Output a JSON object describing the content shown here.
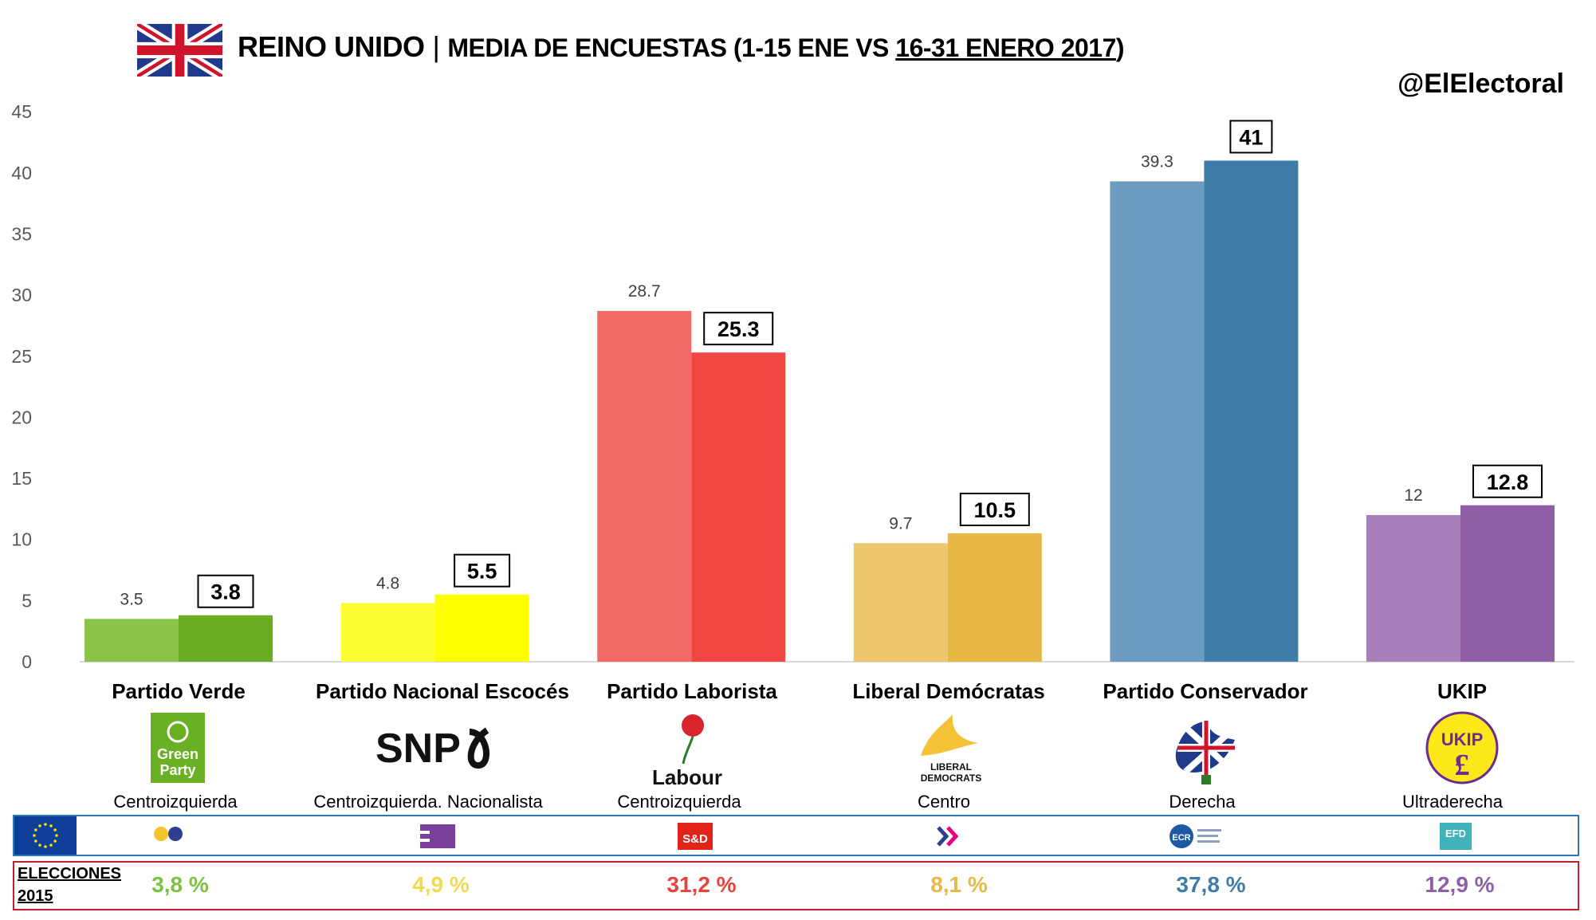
{
  "header": {
    "title_main": "REINO UNIDO",
    "title_sep": "|",
    "title_sub_a": "MEDIA DE ENCUESTAS (1-15 ENE VS ",
    "title_sub_b": "16-31 ENERO 2017",
    "title_sub_c": ")",
    "handle": "@ElElectoral"
  },
  "chart_data": {
    "type": "bar",
    "categories": [
      "Partido Verde",
      "Partido Nacional Escocés",
      "Partido Laborista",
      "Liberal Demócratas",
      "Partido Conservador",
      "UKIP"
    ],
    "series": [
      {
        "values": [
          3.5,
          4.8,
          28.7,
          9.7,
          39.3,
          12
        ]
      },
      {
        "values": [
          3.8,
          5.5,
          25.3,
          10.5,
          41,
          12.8
        ]
      }
    ],
    "value_labels_1": [
      "3.5",
      "4.8",
      "28.7",
      "9.7",
      "39.3",
      "12"
    ],
    "value_labels_2": [
      "3.8",
      "5.5",
      "25.3",
      "10.5",
      "41",
      "12.8"
    ],
    "colors_1": [
      "#8bc34a",
      "#fdfd35",
      "#f36b68",
      "#edc76c",
      "#6c9bbf",
      "#a97fb9"
    ],
    "colors_2": [
      "#68ad22",
      "#ffff00",
      "#f24643",
      "#e7b944",
      "#3f7ca8",
      "#8f5ea7"
    ],
    "ylim": [
      0,
      45
    ],
    "yticks": [
      "0",
      "5",
      "10",
      "15",
      "20",
      "25",
      "30",
      "35",
      "40",
      "45"
    ],
    "grid": false
  },
  "ideologies": [
    "Centroizquierda",
    "Centroizquierda. Nacionalista",
    "Centroizquierda",
    "Centro",
    "Derecha",
    "Ultraderecha"
  ],
  "logos": {
    "green_line1": "Green",
    "green_line2": "Party",
    "snp": "SNP",
    "labour": "Labour",
    "libdem_line1": "LIBERAL",
    "libdem_line2": "DEMOCRATS",
    "ukip": "UKIP"
  },
  "eu_groups": {
    "sd": "S&D",
    "ecr": "ECR",
    "efd": "EFD"
  },
  "elections": {
    "label_line1": "ELECCIONES",
    "label_line2": "2015",
    "values": [
      "3,8 %",
      "4,9 %",
      "31,2 %",
      "8,1 %",
      "37,8 %",
      "12,9 %"
    ],
    "colors": [
      "#7dc142",
      "#f2d94e",
      "#e8423d",
      "#e7b944",
      "#3f7ca8",
      "#8f5ea7"
    ]
  }
}
